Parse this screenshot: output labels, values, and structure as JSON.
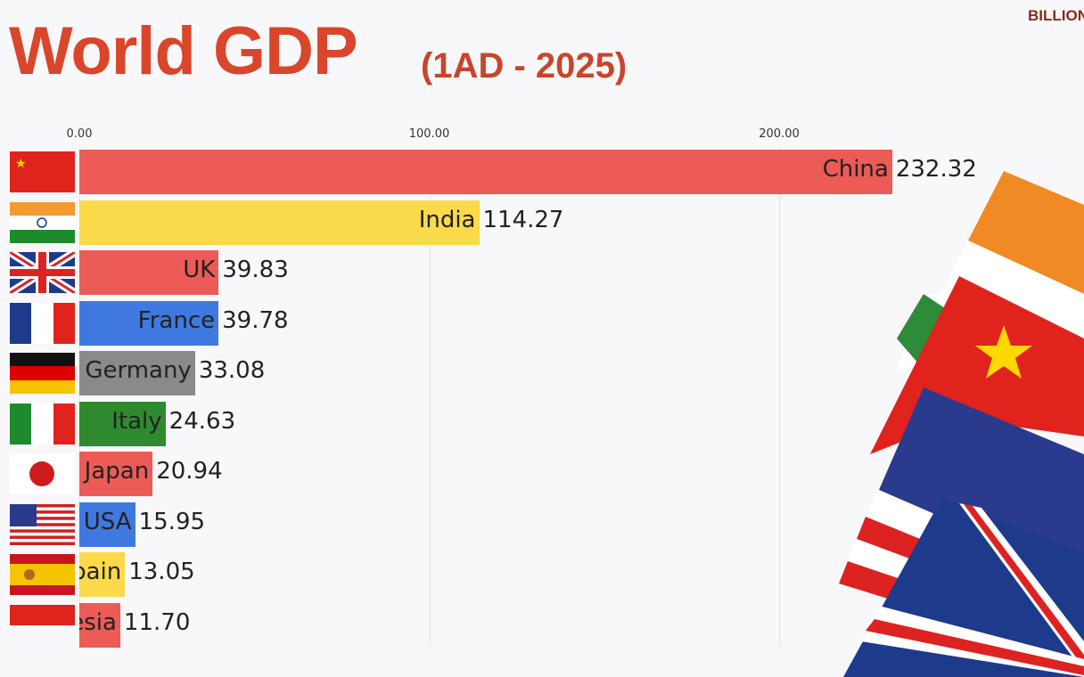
{
  "chart_data": {
    "type": "bar",
    "orientation": "horizontal",
    "title": "World GDP",
    "subtitle": "(1AD - 2025)",
    "unit_label": "BILLION",
    "xlim": [
      0,
      232.32
    ],
    "x_ticks": [
      "0.00",
      "100.00",
      "200.00"
    ],
    "x_tick_values": [
      0,
      100,
      200
    ],
    "grid": true,
    "categories": [
      "China",
      "India",
      "UK",
      "France",
      "Germany",
      "Italy",
      "Japan",
      "USA",
      "Spain",
      "Indonesia"
    ],
    "values": [
      232.32,
      114.27,
      39.83,
      39.78,
      33.08,
      24.63,
      20.94,
      15.95,
      13.05,
      11.7
    ],
    "value_labels": [
      "232.32",
      "114.27",
      "39.83",
      "39.78",
      "33.08",
      "24.63",
      "20.94",
      "15.95",
      "13.05",
      "11.70"
    ],
    "colors": [
      "#ec5b55",
      "#fad94a",
      "#ec5b55",
      "#3f79e0",
      "#8a8a8a",
      "#2f8a2f",
      "#ec5b55",
      "#3f79e0",
      "#fad94a",
      "#ec5b55"
    ],
    "flag_icons": [
      "china-flag-icon",
      "india-flag-icon",
      "uk-flag-icon",
      "france-flag-icon",
      "germany-flag-icon",
      "italy-flag-icon",
      "japan-flag-icon",
      "usa-flag-icon",
      "spain-flag-icon",
      "indonesia-flag-icon"
    ]
  }
}
